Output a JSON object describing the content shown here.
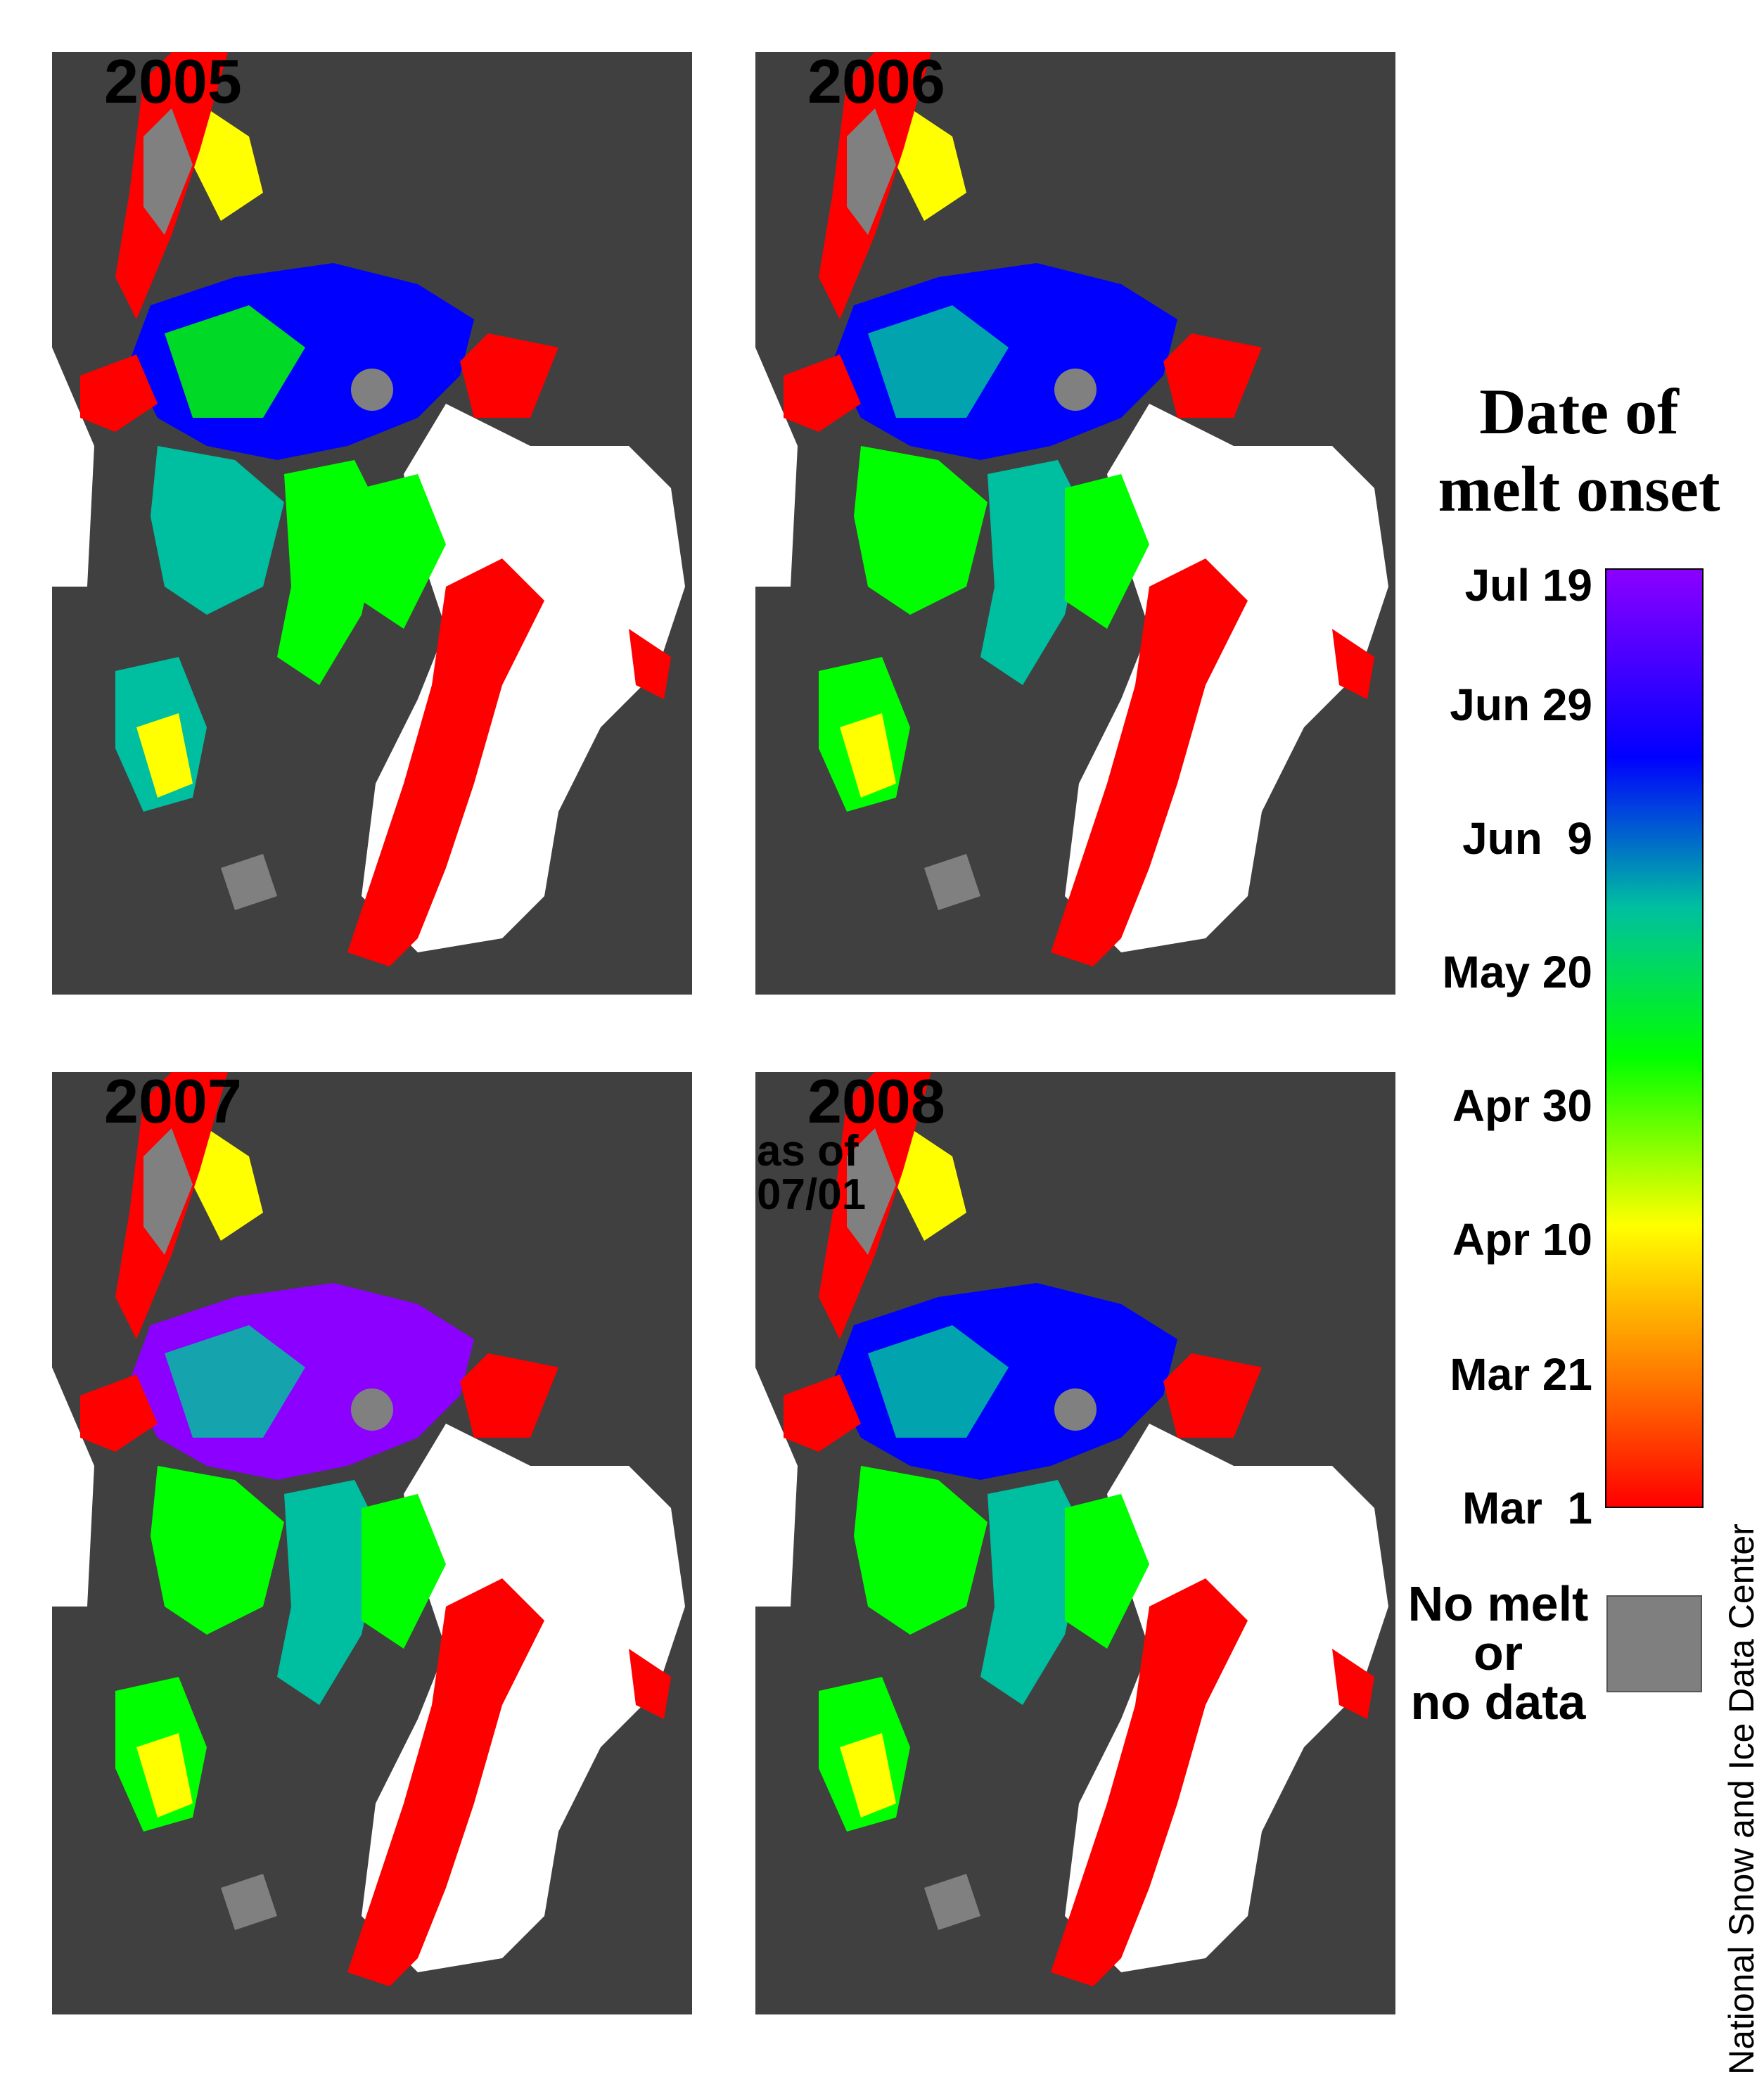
{
  "panels": [
    {
      "year": "2005",
      "note": ""
    },
    {
      "year": "2006",
      "note": ""
    },
    {
      "year": "2007",
      "note": ""
    },
    {
      "year": "2008",
      "note": "as of\n07/01"
    }
  ],
  "legend": {
    "title_line1": "Date of",
    "title_line2": "melt onset",
    "ticks": [
      "Jul 19",
      "Jun 29",
      "Jun  9",
      "May 20",
      "Apr 30",
      "Apr 10",
      "Mar 21",
      "Mar  1"
    ],
    "nodata_line1": "No melt",
    "nodata_line2": "or",
    "nodata_line3": "no data",
    "colors": {
      "jul": "#8b00ff",
      "jun_late": "#0000ff",
      "jun_early": "#00bfa0",
      "may": "#00ff00",
      "apr_late": "#ffff00",
      "apr_early": "#ff7a00",
      "mar": "#ff0000",
      "no_data": "#7f7f7f"
    }
  },
  "credit": "National Snow and Ice Data Center",
  "map_colors": {
    "land": "#404040",
    "ocean_open": "#ffffff",
    "pole_hole": "#808080"
  }
}
